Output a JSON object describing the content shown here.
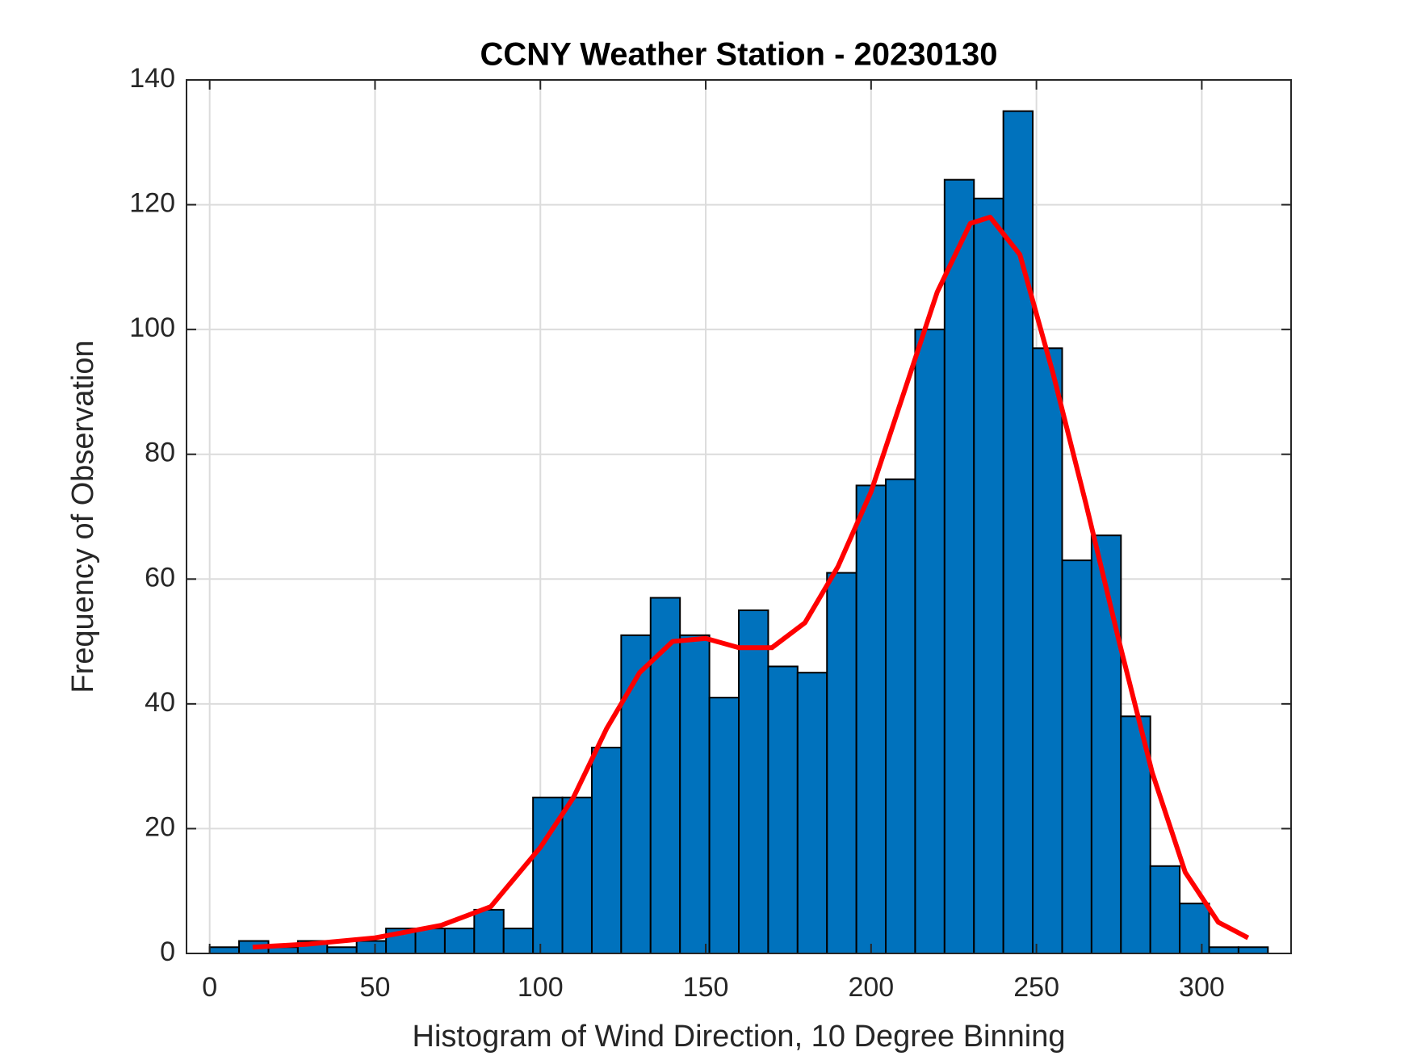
{
  "chart_data": {
    "type": "histogram",
    "title": "CCNY Weather Station - 20230130",
    "xlabel": "Histogram of Wind Direction, 10 Degree Binning",
    "ylabel": "Frequency of Observation",
    "bins": [
      0,
      8.89,
      17.78,
      26.67,
      35.56,
      44.44,
      53.33,
      62.22,
      71.11,
      80,
      88.89,
      97.78,
      106.67,
      115.56,
      124.44,
      133.33,
      142.22,
      151.11,
      160,
      168.89,
      177.78,
      186.67,
      195.56,
      204.44,
      213.33,
      222.22,
      231.11,
      240,
      248.89,
      257.78,
      266.67,
      275.56,
      284.44,
      293.33,
      302.22,
      311.11,
      320
    ],
    "values": [
      1,
      2,
      1,
      2,
      1,
      2,
      4,
      4,
      4,
      7,
      4,
      25,
      25,
      33,
      51,
      57,
      51,
      41,
      55,
      46,
      45,
      61,
      75,
      76,
      100,
      124,
      121,
      135,
      97,
      63,
      67,
      38,
      14,
      8,
      1,
      1
    ],
    "color": "#0072bd",
    "edgecolor": "#000000",
    "overlay": {
      "type": "line",
      "color": "#ff0000",
      "x": [
        13,
        30,
        50,
        70,
        85,
        100,
        110,
        120,
        130,
        140,
        150,
        160,
        170,
        180,
        190,
        200,
        210,
        220,
        230,
        236,
        245,
        255,
        265,
        275,
        285,
        295,
        305,
        314
      ],
      "values": [
        1,
        1.5,
        2.5,
        4.5,
        7.5,
        17,
        25,
        36,
        45,
        50,
        50.5,
        49,
        49,
        53,
        62,
        74,
        90,
        106,
        117,
        118,
        112,
        93,
        72,
        50,
        29,
        13,
        5,
        2.5
      ]
    },
    "xlim": [
      -7,
      327
    ],
    "ylim": [
      0,
      140
    ],
    "xticks": [
      0,
      50,
      100,
      150,
      200,
      250,
      300
    ],
    "yticks": [
      0,
      20,
      40,
      60,
      80,
      100,
      120,
      140
    ],
    "grid": true
  }
}
